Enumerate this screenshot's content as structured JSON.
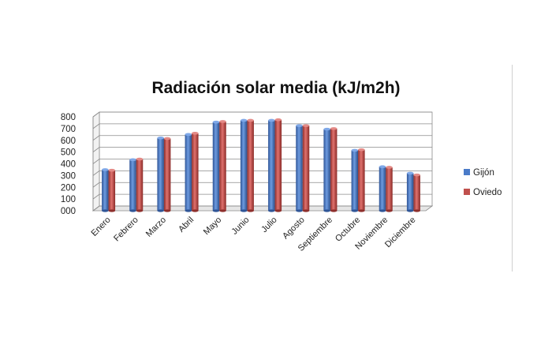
{
  "chart_data": {
    "type": "bar",
    "title": "Radiación solar  media (kJ/m2h)",
    "categories": [
      "Enero",
      "Febrero",
      "Marzo",
      "Abril",
      "Mayo",
      "Junio",
      "Julio",
      "Agosto",
      "Septiembre",
      "Octubre",
      "Noviembre",
      "Diciembre"
    ],
    "series": [
      {
        "name": "Gijón",
        "color": "#4a7bc8",
        "values": [
          350,
          435,
          620,
          650,
          755,
          770,
          770,
          725,
          695,
          515,
          375,
          320
        ]
      },
      {
        "name": "Oviedo",
        "color": "#c0504d",
        "values": [
          345,
          440,
          615,
          660,
          760,
          770,
          775,
          725,
          700,
          520,
          370,
          305
        ]
      }
    ],
    "y_ticks": [
      "000",
      "100",
      "200",
      "300",
      "400",
      "500",
      "600",
      "700",
      "800"
    ],
    "ylim": [
      0,
      800
    ],
    "grid": true,
    "legend_position": "right",
    "style": "3d-cylinder-columns"
  }
}
